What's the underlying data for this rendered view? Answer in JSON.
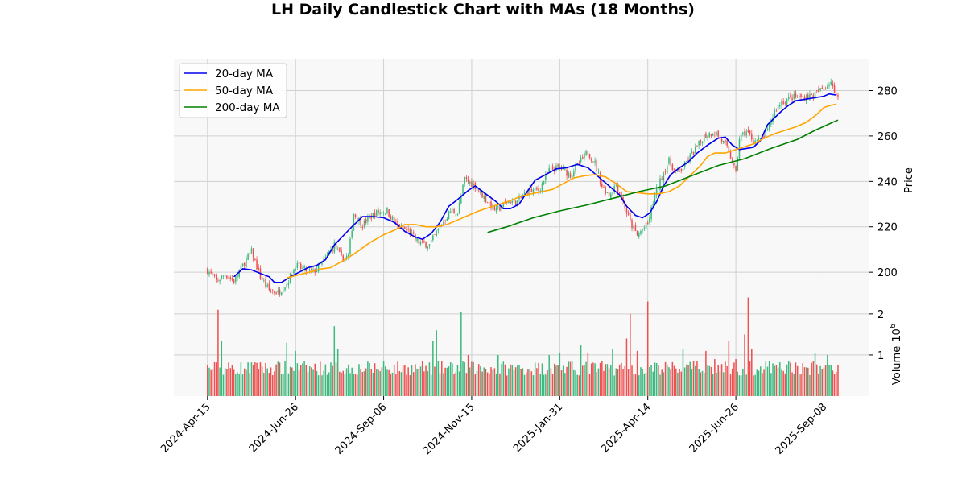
{
  "chart_data": {
    "type": "candlestick",
    "title": "LH Daily Candlestick Chart with MAs (18 Months)",
    "ylabel": "Price",
    "volume_ylabel": "Volume",
    "volume_exponent": "10",
    "volume_exponent_power": "6",
    "ylim": [
      188,
      294
    ],
    "volume_ylim": [
      0,
      2.35
    ],
    "x_ticks": [
      "2024-Apr-15",
      "2024-Jun-26",
      "2024-Sep-06",
      "2024-Nov-15",
      "2025-Jan-31",
      "2025-Apr-14",
      "2025-Jun-26",
      "2025-Sep-08"
    ],
    "y_ticks": [
      200,
      220,
      240,
      260,
      280
    ],
    "volume_ticks": [
      1,
      2
    ],
    "grid": true,
    "legend_position": "upper-left",
    "colors": {
      "up": "#3dbb7e",
      "down": "#f05050",
      "ma20": "#0000ee",
      "ma50": "#ffa500",
      "ma200": "#008000",
      "panel_bg": "#f8f8f8",
      "grid": "#d0d0d0"
    },
    "price_anchors": [
      [
        0,
        201
      ],
      [
        5,
        196
      ],
      [
        10,
        199
      ],
      [
        15,
        196
      ],
      [
        20,
        203
      ],
      [
        25,
        209
      ],
      [
        30,
        198
      ],
      [
        35,
        192
      ],
      [
        40,
        191
      ],
      [
        45,
        195
      ],
      [
        50,
        203
      ],
      [
        55,
        201
      ],
      [
        60,
        200
      ],
      [
        66,
        205
      ],
      [
        72,
        212
      ],
      [
        76,
        206
      ],
      [
        80,
        207
      ],
      [
        83,
        226
      ],
      [
        88,
        221
      ],
      [
        95,
        226
      ],
      [
        102,
        227
      ],
      [
        108,
        220
      ],
      [
        114,
        218
      ],
      [
        120,
        213
      ],
      [
        126,
        212
      ],
      [
        132,
        220
      ],
      [
        138,
        227
      ],
      [
        142,
        226
      ],
      [
        146,
        241
      ],
      [
        152,
        238
      ],
      [
        158,
        232
      ],
      [
        164,
        227
      ],
      [
        170,
        231
      ],
      [
        176,
        231
      ],
      [
        182,
        236
      ],
      [
        188,
        236
      ],
      [
        194,
        245
      ],
      [
        200,
        246
      ],
      [
        206,
        243
      ],
      [
        212,
        249
      ],
      [
        216,
        253
      ],
      [
        220,
        248
      ],
      [
        224,
        238
      ],
      [
        228,
        234
      ],
      [
        232,
        239
      ],
      [
        236,
        231
      ],
      [
        240,
        222
      ],
      [
        244,
        216
      ],
      [
        246,
        218
      ],
      [
        250,
        221
      ],
      [
        254,
        234
      ],
      [
        258,
        242
      ],
      [
        262,
        249
      ],
      [
        266,
        244
      ],
      [
        270,
        246
      ],
      [
        274,
        251
      ],
      [
        278,
        255
      ],
      [
        282,
        260
      ],
      [
        288,
        262
      ],
      [
        294,
        256
      ],
      [
        298,
        249
      ],
      [
        300,
        243
      ],
      [
        302,
        259
      ],
      [
        306,
        262
      ],
      [
        310,
        258
      ],
      [
        314,
        258
      ],
      [
        318,
        262
      ],
      [
        322,
        271
      ],
      [
        326,
        275
      ],
      [
        332,
        277
      ],
      [
        338,
        277
      ],
      [
        344,
        278
      ],
      [
        350,
        281
      ],
      [
        354,
        284
      ],
      [
        356,
        278
      ],
      [
        358,
        279
      ]
    ],
    "ma20_points": [
      [
        15,
        198
      ],
      [
        20,
        201.5
      ],
      [
        25,
        201
      ],
      [
        30,
        199.5
      ],
      [
        35,
        198
      ],
      [
        38,
        195.5
      ],
      [
        42,
        195.5
      ],
      [
        47,
        198
      ],
      [
        52,
        200
      ],
      [
        57,
        202
      ],
      [
        62,
        203
      ],
      [
        67,
        205.5
      ],
      [
        72,
        212
      ],
      [
        77,
        216
      ],
      [
        82,
        220
      ],
      [
        88,
        224.5
      ],
      [
        94,
        224.5
      ],
      [
        100,
        224
      ],
      [
        106,
        222
      ],
      [
        112,
        218
      ],
      [
        118,
        215.5
      ],
      [
        122,
        214.5
      ],
      [
        127,
        217
      ],
      [
        132,
        222
      ],
      [
        137,
        229
      ],
      [
        142,
        232
      ],
      [
        148,
        236
      ],
      [
        152,
        238
      ],
      [
        158,
        234.5
      ],
      [
        164,
        231
      ],
      [
        168,
        228
      ],
      [
        172,
        228
      ],
      [
        177,
        230
      ],
      [
        182,
        236
      ],
      [
        186,
        240.5
      ],
      [
        192,
        243
      ],
      [
        198,
        245.5
      ],
      [
        204,
        246
      ],
      [
        210,
        247.5
      ],
      [
        216,
        246
      ],
      [
        222,
        242
      ],
      [
        228,
        238
      ],
      [
        234,
        234
      ],
      [
        238,
        229
      ],
      [
        243,
        225
      ],
      [
        247,
        224
      ],
      [
        251,
        226
      ],
      [
        255,
        231
      ],
      [
        259,
        238
      ],
      [
        263,
        243
      ],
      [
        268,
        246
      ],
      [
        273,
        248.5
      ],
      [
        278,
        252.5
      ],
      [
        284,
        256
      ],
      [
        290,
        259
      ],
      [
        294,
        259.5
      ],
      [
        298,
        256
      ],
      [
        302,
        254
      ],
      [
        306,
        254.5
      ],
      [
        310,
        255
      ],
      [
        314,
        258
      ],
      [
        318,
        265
      ],
      [
        322,
        268
      ],
      [
        326,
        271
      ],
      [
        330,
        273.5
      ],
      [
        334,
        275.5
      ],
      [
        338,
        276
      ],
      [
        342,
        276.5
      ],
      [
        346,
        277
      ],
      [
        350,
        277.5
      ],
      [
        353,
        278.5
      ],
      [
        357,
        278
      ]
    ],
    "ma50_points": [
      [
        45,
        197.5
      ],
      [
        50,
        198.5
      ],
      [
        55,
        199.5
      ],
      [
        60,
        200.5
      ],
      [
        65,
        201.5
      ],
      [
        70,
        202
      ],
      [
        78,
        205.5
      ],
      [
        85,
        209
      ],
      [
        92,
        213
      ],
      [
        100,
        216.5
      ],
      [
        106,
        218.5
      ],
      [
        112,
        221
      ],
      [
        118,
        221
      ],
      [
        124,
        220
      ],
      [
        130,
        220
      ],
      [
        136,
        221
      ],
      [
        142,
        223
      ],
      [
        148,
        225
      ],
      [
        154,
        227
      ],
      [
        160,
        228.5
      ],
      [
        166,
        230
      ],
      [
        172,
        231.5
      ],
      [
        178,
        233.5
      ],
      [
        184,
        234.5
      ],
      [
        190,
        235.5
      ],
      [
        196,
        236.5
      ],
      [
        202,
        239
      ],
      [
        208,
        241.5
      ],
      [
        214,
        242.5
      ],
      [
        220,
        243
      ],
      [
        226,
        242
      ],
      [
        232,
        239
      ],
      [
        238,
        235.5
      ],
      [
        244,
        235
      ],
      [
        250,
        234.5
      ],
      [
        256,
        234.5
      ],
      [
        262,
        235.5
      ],
      [
        268,
        238
      ],
      [
        274,
        242.5
      ],
      [
        280,
        247
      ],
      [
        284,
        251
      ],
      [
        288,
        252.5
      ],
      [
        294,
        252.5
      ],
      [
        298,
        253.5
      ],
      [
        304,
        255
      ],
      [
        310,
        256.5
      ],
      [
        316,
        259
      ],
      [
        322,
        261
      ],
      [
        328,
        262.5
      ],
      [
        334,
        264
      ],
      [
        340,
        266
      ],
      [
        346,
        269.5
      ],
      [
        350,
        272.5
      ],
      [
        354,
        273.5
      ],
      [
        357,
        274
      ]
    ],
    "ma200_points": [
      [
        159,
        217.5
      ],
      [
        170,
        220
      ],
      [
        185,
        224
      ],
      [
        200,
        227
      ],
      [
        215,
        229.5
      ],
      [
        230,
        232.5
      ],
      [
        245,
        235.5
      ],
      [
        260,
        238
      ],
      [
        275,
        242.5
      ],
      [
        290,
        247
      ],
      [
        305,
        250
      ],
      [
        320,
        254.5
      ],
      [
        335,
        258.5
      ],
      [
        345,
        262.5
      ],
      [
        355,
        266
      ],
      [
        358,
        267
      ]
    ],
    "volume_base": 0.5,
    "volume_spikes": [
      [
        6,
        2.1
      ],
      [
        8,
        1.35
      ],
      [
        25,
        0.82
      ],
      [
        30,
        0.82
      ],
      [
        45,
        1.3
      ],
      [
        50,
        1.1
      ],
      [
        72,
        1.7
      ],
      [
        74,
        1.15
      ],
      [
        100,
        0.85
      ],
      [
        128,
        1.35
      ],
      [
        130,
        1.6
      ],
      [
        144,
        2.05
      ],
      [
        148,
        1.0
      ],
      [
        165,
        1.0
      ],
      [
        194,
        1.0
      ],
      [
        200,
        1.05
      ],
      [
        212,
        1.25
      ],
      [
        216,
        1.05
      ],
      [
        230,
        1.15
      ],
      [
        238,
        1.4
      ],
      [
        240,
        2.0
      ],
      [
        244,
        1.1
      ],
      [
        250,
        2.3
      ],
      [
        270,
        1.15
      ],
      [
        283,
        1.1
      ],
      [
        288,
        0.9
      ],
      [
        296,
        1.35
      ],
      [
        300,
        0.9
      ],
      [
        305,
        1.5
      ],
      [
        307,
        2.4
      ],
      [
        309,
        1.15
      ],
      [
        330,
        0.85
      ],
      [
        340,
        0.7
      ],
      [
        345,
        1.05
      ],
      [
        352,
        1.0
      ],
      [
        354,
        0.75
      ]
    ],
    "n_days": 360
  }
}
